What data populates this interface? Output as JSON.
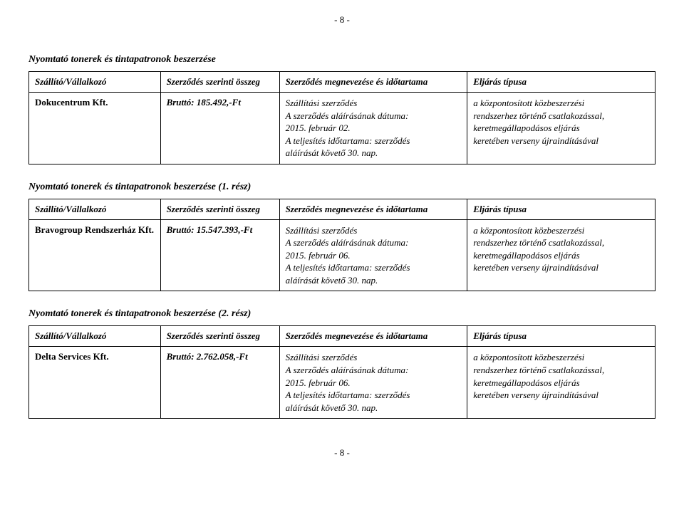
{
  "page_number_top": "- 8 -",
  "page_number_bottom": "- 8 -",
  "columns": {
    "supplier": "Szállító/Vállalkozó",
    "amount": "Szerződés szerinti összeg",
    "desc_header": "Szerződés megnevezése és időtartama",
    "proc_header": "Eljárás típusa"
  },
  "desc_lines": {
    "contract_type": "Szállítási szerződés",
    "sign_date_label": "A szerződés aláírásának dátuma:",
    "perf_label_a": "A teljesítés időtartama: szerződés",
    "perf_label_b": "aláírását követő 30. nap."
  },
  "proc_lines": {
    "l1": "a központosított közbeszerzési",
    "l2": "rendszerhez történő csatlakozással,",
    "l3": "keretmegállapodásos eljárás",
    "l4": "keretében verseny újraindításával"
  },
  "sections": [
    {
      "title": "Nyomtató tonerek és tintapatronok beszerzése",
      "supplier": "Dokucentrum Kft.",
      "amount": "Bruttó: 185.492,-Ft",
      "sign_date": "2015. február 02."
    },
    {
      "title": "Nyomtató tonerek és tintapatronok beszerzése (1. rész)",
      "supplier": "Bravogroup Rendszerház Kft.",
      "amount": "Bruttó: 15.547.393,-Ft",
      "sign_date": "2015. február 06."
    },
    {
      "title": "Nyomtató tonerek és tintapatronok beszerzése (2. rész)",
      "supplier": "Delta Services Kft.",
      "amount": "Bruttó: 2.762.058,-Ft",
      "sign_date": "2015. február 06."
    }
  ]
}
